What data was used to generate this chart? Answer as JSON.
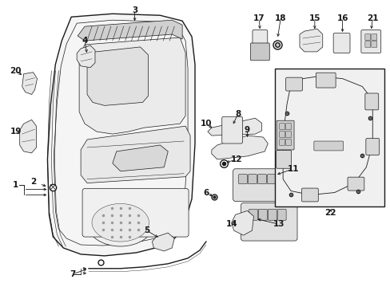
{
  "background_color": "#ffffff",
  "fig_width": 4.89,
  "fig_height": 3.6,
  "dpi": 100,
  "line_color": "#1a1a1a",
  "light_gray": "#e8e8e8",
  "mid_gray": "#c8c8c8",
  "dark_gray": "#999999",
  "lw_main": 1.0,
  "lw_thin": 0.5,
  "fs_label": 7.5
}
